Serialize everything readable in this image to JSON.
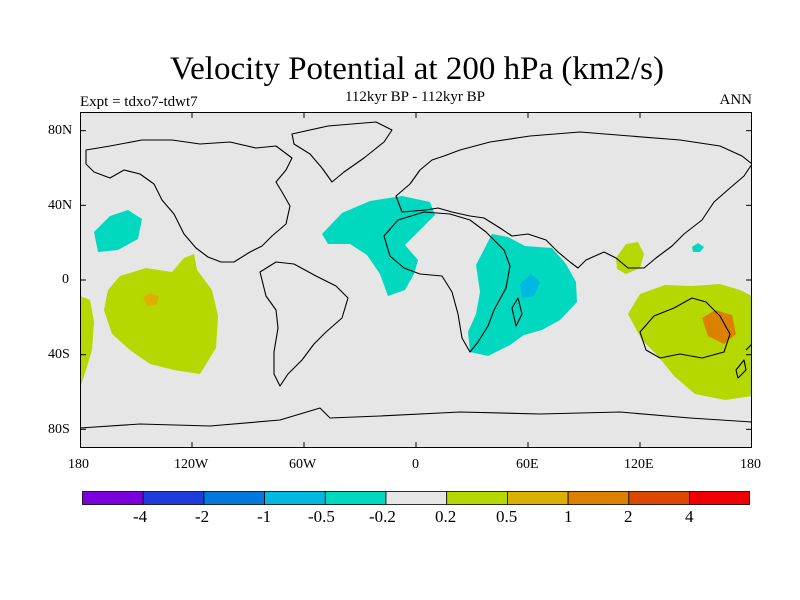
{
  "title": "Velocity Potential at 200 hPa (km2/s)",
  "subtitle": "112kyr BP - 112kyr BP",
  "left_label": "Expt = tdxo7-tdwt7",
  "right_label": "ANN",
  "map": {
    "projection": "cylindrical-equidistant",
    "background_color": "#e6e6e6",
    "coastline_color": "#000000",
    "lat_ticks": [
      "80N",
      "40N",
      "0",
      "40S",
      "80S"
    ],
    "lon_ticks": [
      "180",
      "120W",
      "60W",
      "0",
      "60E",
      "120E",
      "180"
    ],
    "shaded_regions": [
      {
        "name": "north-atlantic-africa-negative",
        "category": "-0.5 to -0.2",
        "color": "#00d8c0"
      },
      {
        "name": "indian-ocean-negative",
        "category": "-0.5 to -0.2",
        "color": "#00d8c0"
      },
      {
        "name": "indian-ocean-core",
        "category": "-1 to -0.5",
        "color": "#00b8e0"
      },
      {
        "name": "north-pacific-negative",
        "category": "-0.5 to -0.2",
        "color": "#00d8c0"
      },
      {
        "name": "south-pacific-positive",
        "category": "0.2 to 0.5",
        "color": "#b4d800"
      },
      {
        "name": "south-pacific-core",
        "category": "0.5 to 1",
        "color": "#dcb000"
      },
      {
        "name": "australia-positive",
        "category": "0.2 to 0.5",
        "color": "#b4d800"
      },
      {
        "name": "australia-core",
        "category": "1 to 2",
        "color": "#dc8000"
      },
      {
        "name": "maritime-continent-positive",
        "category": "0.2 to 0.5",
        "color": "#b4d800"
      }
    ]
  },
  "colorbar": {
    "colors": [
      "#7a00dc",
      "#1e3cdc",
      "#0078dc",
      "#00b8e0",
      "#00d8c0",
      "#e6e6e6",
      "#b4d800",
      "#dcb000",
      "#dc8000",
      "#dc4800",
      "#f00000"
    ],
    "labels": [
      "-4",
      "-2",
      "-1",
      "-0.5",
      "-0.2",
      "0.2",
      "0.5",
      "1",
      "2",
      "4"
    ]
  }
}
